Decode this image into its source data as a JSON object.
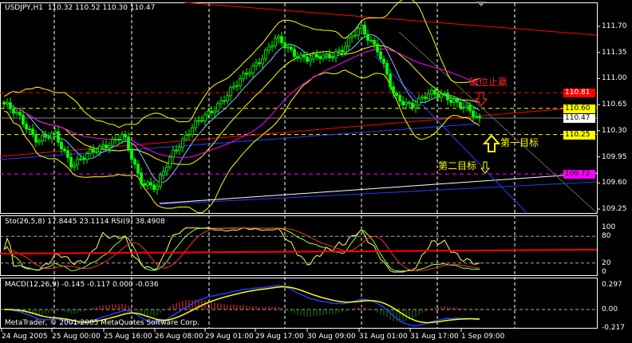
{
  "window": {
    "symbol_header": "USDJPY,H1",
    "ohlc": [
      "110.32",
      "110.52",
      "110.30",
      "110.47"
    ]
  },
  "indicators": {
    "sto_rsi_label": "Sto(26,5,8) 17.8445 23.1114  RSI(9) 38.4908",
    "macd_label": "MACD(12,26,9) -0.145 -0.117 0.000 -0.036",
    "copyright": "MetaTrader, © 2001-2005 MetaQuotes Software Corp."
  },
  "annotations": {
    "stop": "破位止赢",
    "target1": "第一目标",
    "target2": "第二目标"
  },
  "colors": {
    "background": "#000000",
    "bull_candle": "#00ff00",
    "trendline": "#ff0000",
    "bollinger": "#ffff00",
    "stop_level": "#ff0000",
    "target_level": "#ffff00",
    "magenta_level": "#ff00ff",
    "current_price": "#ffffff"
  },
  "chart_data": [
    {
      "type": "candlestick",
      "title": "USDJPY,H1",
      "ylim": [
        109.1,
        112.0
      ],
      "y_ticks": [
        "111.70",
        "111.35",
        "111.00",
        "110.65",
        "110.30",
        "109.95",
        "109.60",
        "109.25"
      ],
      "x_ticks": [
        "24 Aug 2005",
        "25 Aug 00:00",
        "25 Aug 16:00",
        "26 Aug 08:00",
        "29 Aug 01:00",
        "29 Aug 17:00",
        "30 Aug 09:00",
        "31 Aug 01:00",
        "31 Aug 17:00",
        "1 Sep 09:00"
      ],
      "close_path": [
        110.66,
        110.45,
        110.18,
        110.23,
        109.86,
        109.97,
        110.13,
        110.23,
        109.65,
        109.54,
        110.02,
        110.34,
        110.5,
        110.77,
        110.98,
        111.25,
        111.52,
        111.36,
        111.25,
        111.3,
        111.41,
        111.68,
        111.41,
        110.72,
        110.66,
        110.77,
        110.79,
        110.61,
        110.45
      ],
      "price_levels": [
        {
          "value": "110.81",
          "color": "#ff0000",
          "style": "dashed",
          "label_bg": "#ff0000",
          "label_fg": "#ffffff"
        },
        {
          "value": "110.60",
          "color": "#ffff00",
          "style": "dashed",
          "label_bg": "#ffff00",
          "label_fg": "#000000"
        },
        {
          "value": "110.47",
          "color": "#808080",
          "style": "solid",
          "label_bg": "#ffffff",
          "label_fg": "#000000"
        },
        {
          "value": "110.25",
          "color": "#ffff00",
          "style": "dashed",
          "label_bg": "#ffff00",
          "label_fg": "#000000"
        },
        {
          "value": "109.72",
          "color": "#ff00ff",
          "style": "dashed",
          "label_bg": "#ff00ff",
          "label_fg": "#000000"
        }
      ],
      "overlays": [
        "Bollinger Bands",
        "Moving Averages",
        "Trendlines"
      ]
    },
    {
      "type": "line",
      "title": "Sto(26,5,8) / RSI(9)",
      "ylim": [
        0,
        100
      ],
      "y_ticks": [
        "100",
        "80",
        "20",
        "0"
      ],
      "values_last": {
        "sto_main": 17.8445,
        "sto_signal": 23.1114,
        "rsi": 38.4908
      }
    },
    {
      "type": "bar",
      "title": "MACD(12,26,9)",
      "y_ticks": [
        "0.297",
        "0.00",
        "-0.217"
      ],
      "values_last": [
        -0.145,
        -0.117,
        0.0,
        -0.036
      ]
    }
  ]
}
